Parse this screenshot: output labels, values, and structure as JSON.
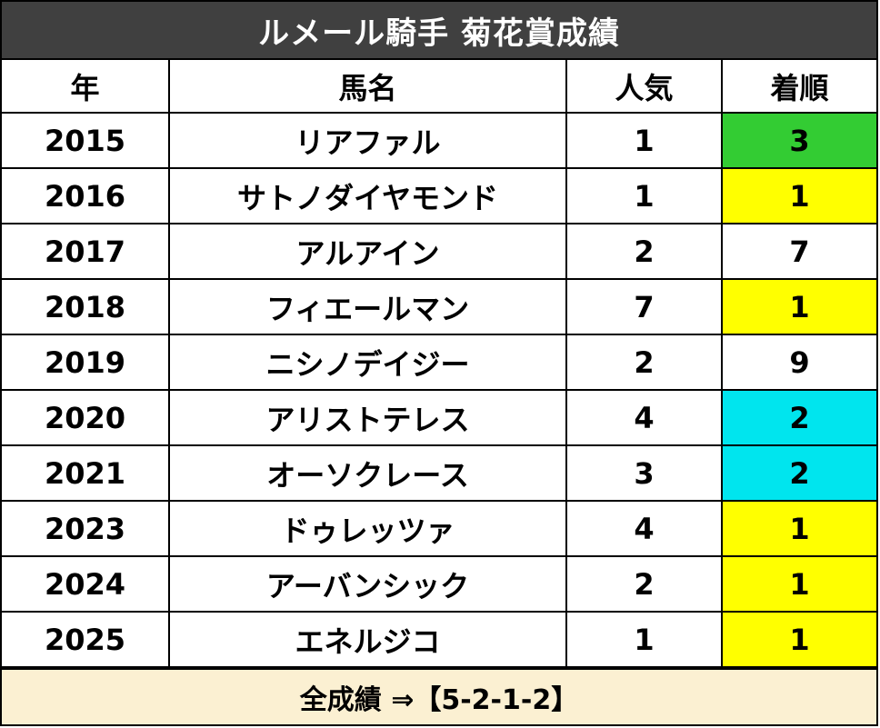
{
  "title": "ルメール騎手 菊花賞成績",
  "headers": {
    "year": "年",
    "horse": "馬名",
    "popularity": "人気",
    "finish": "着順"
  },
  "rows": [
    {
      "year": "2015",
      "horse": "リアファル",
      "popularity": "1",
      "finish": "3",
      "finish_color": "#33cc33"
    },
    {
      "year": "2016",
      "horse": "サトノダイヤモンド",
      "popularity": "1",
      "finish": "1",
      "finish_color": "#ffff00"
    },
    {
      "year": "2017",
      "horse": "アルアイン",
      "popularity": "2",
      "finish": "7",
      "finish_color": "#ffffff"
    },
    {
      "year": "2018",
      "horse": "フィエールマン",
      "popularity": "7",
      "finish": "1",
      "finish_color": "#ffff00"
    },
    {
      "year": "2019",
      "horse": "ニシノデイジー",
      "popularity": "2",
      "finish": "9",
      "finish_color": "#ffffff"
    },
    {
      "year": "2020",
      "horse": "アリストテレス",
      "popularity": "4",
      "finish": "2",
      "finish_color": "#00e5ee"
    },
    {
      "year": "2021",
      "horse": "オーソクレース",
      "popularity": "3",
      "finish": "2",
      "finish_color": "#00e5ee"
    },
    {
      "year": "2023",
      "horse": "ドゥレッツァ",
      "popularity": "4",
      "finish": "1",
      "finish_color": "#ffff00"
    },
    {
      "year": "2024",
      "horse": "アーバンシック",
      "popularity": "2",
      "finish": "1",
      "finish_color": "#ffff00"
    },
    {
      "year": "2025",
      "horse": "エネルジコ",
      "popularity": "1",
      "finish": "1",
      "finish_color": "#ffff00"
    }
  ],
  "footer": "全成績 ⇒【5-2-1-2】",
  "colors": {
    "title_bg": "#404040",
    "footer_bg": "#fbf0d2",
    "win": "#ffff00",
    "second": "#00e5ee",
    "third": "#33cc33"
  }
}
